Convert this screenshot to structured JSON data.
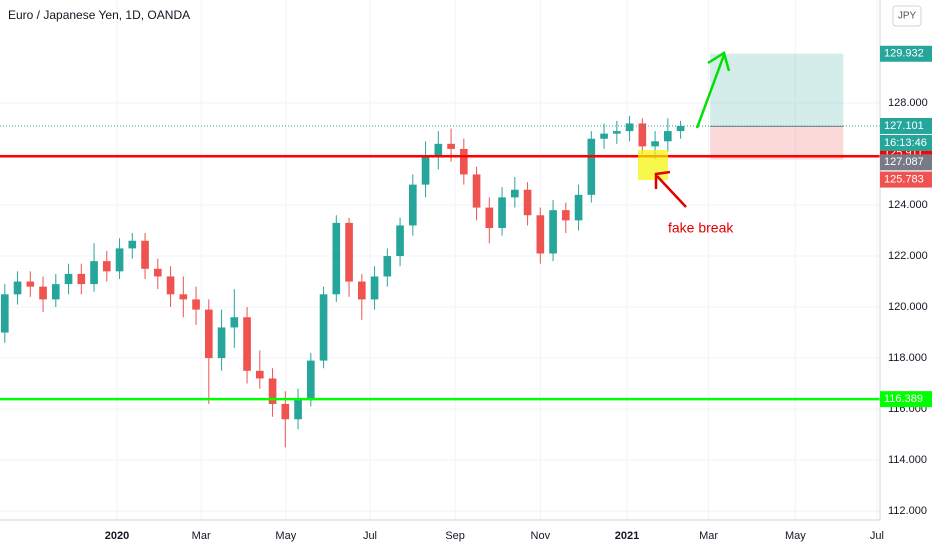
{
  "chart_data": {
    "type": "candlestick",
    "title": "Euro / Japanese Yen, 1D, OANDA",
    "currency": "JPY",
    "x": [
      2019.78,
      2019.805,
      2019.83,
      2019.855,
      2019.88,
      2019.905,
      2019.93,
      2019.955,
      2019.98,
      2020.005,
      2020.03,
      2020.055,
      2020.08,
      2020.105,
      2020.13,
      2020.155,
      2020.18,
      2020.205,
      2020.23,
      2020.255,
      2020.28,
      2020.305,
      2020.33,
      2020.355,
      2020.38,
      2020.405,
      2020.43,
      2020.455,
      2020.48,
      2020.505,
      2020.53,
      2020.555,
      2020.58,
      2020.605,
      2020.63,
      2020.655,
      2020.68,
      2020.705,
      2020.73,
      2020.755,
      2020.78,
      2020.805,
      2020.83,
      2020.855,
      2020.88,
      2020.905,
      2020.93,
      2020.955,
      2020.98,
      2021.005,
      2021.03,
      2021.055,
      2021.08,
      2021.105
    ],
    "open": [
      119.0,
      120.5,
      121.0,
      120.8,
      120.3,
      120.9,
      121.3,
      120.9,
      121.8,
      121.4,
      122.3,
      122.6,
      121.5,
      121.2,
      120.5,
      120.3,
      119.9,
      118.0,
      119.2,
      119.6,
      117.5,
      117.2,
      116.2,
      115.6,
      116.4,
      117.9,
      120.5,
      123.3,
      121.0,
      120.3,
      121.2,
      122.0,
      123.2,
      124.8,
      125.9,
      126.4,
      126.2,
      125.2,
      123.9,
      123.1,
      124.3,
      124.6,
      123.6,
      122.1,
      123.8,
      123.4,
      124.4,
      126.6,
      126.8,
      126.9,
      127.2,
      126.3,
      126.5,
      126.9
    ],
    "high": [
      120.9,
      121.4,
      121.4,
      121.2,
      121.3,
      121.7,
      121.7,
      122.5,
      122.2,
      122.7,
      122.9,
      122.9,
      121.9,
      121.6,
      121.2,
      120.8,
      120.3,
      119.9,
      120.7,
      120.0,
      118.3,
      117.6,
      116.7,
      116.8,
      118.2,
      120.8,
      123.6,
      123.5,
      121.3,
      121.6,
      122.3,
      123.5,
      125.2,
      126.5,
      126.9,
      127.0,
      126.6,
      125.5,
      124.3,
      124.7,
      125.1,
      124.9,
      123.9,
      124.2,
      124.1,
      124.8,
      126.9,
      127.2,
      127.3,
      127.5,
      127.4,
      126.9,
      127.4,
      127.3
    ],
    "low": [
      118.6,
      120.1,
      120.4,
      119.8,
      120.0,
      120.5,
      120.5,
      120.6,
      121.0,
      121.1,
      121.9,
      121.1,
      120.7,
      120.0,
      119.6,
      119.3,
      116.2,
      117.5,
      118.4,
      117.0,
      116.8,
      115.7,
      114.5,
      115.2,
      116.1,
      117.6,
      120.2,
      120.4,
      119.5,
      119.9,
      120.8,
      121.6,
      122.8,
      124.3,
      125.4,
      125.7,
      124.8,
      123.4,
      122.5,
      122.8,
      123.9,
      123.2,
      121.7,
      121.8,
      122.9,
      123.0,
      124.1,
      126.2,
      126.4,
      126.5,
      126.0,
      125.8,
      126.1,
      126.6
    ],
    "close": [
      120.5,
      121.0,
      120.8,
      120.3,
      120.9,
      121.3,
      120.9,
      121.8,
      121.4,
      122.3,
      122.6,
      121.5,
      121.2,
      120.5,
      120.3,
      119.9,
      118.0,
      119.2,
      119.6,
      117.5,
      117.2,
      116.2,
      115.6,
      116.4,
      117.9,
      120.5,
      123.3,
      121.0,
      120.3,
      121.2,
      122.0,
      123.2,
      124.8,
      125.9,
      126.4,
      126.2,
      125.2,
      123.9,
      123.1,
      124.3,
      124.6,
      123.6,
      122.1,
      123.8,
      123.4,
      124.4,
      126.6,
      126.8,
      126.9,
      127.2,
      126.3,
      126.5,
      126.9,
      127.1
    ],
    "up_color": "#26a69a",
    "down_color": "#ef5350",
    "xlim": [
      2019.7706,
      2021.496
    ],
    "xticks": [
      2020,
      {
        "value": 2020.165,
        "label": "Mar"
      },
      {
        "value": 2020.331,
        "label": "May"
      },
      {
        "value": 2020.496,
        "label": "Jul"
      },
      {
        "value": 2020.663,
        "label": "Sep"
      },
      {
        "value": 2020.83,
        "label": "Nov"
      },
      2021,
      {
        "value": 2021.16,
        "label": "Mar"
      },
      {
        "value": 2021.33,
        "label": "May"
      },
      {
        "value": 2021.49,
        "label": "Jul"
      }
    ],
    "ylim": [
      111.65,
      132.04
    ],
    "yticks": [
      {
        "value": 112,
        "label": "112.000"
      },
      {
        "value": 114,
        "label": "114.000"
      },
      {
        "value": 116,
        "label": "116.000"
      },
      {
        "value": 118,
        "label": "118.000"
      },
      {
        "value": 120,
        "label": "120.000"
      },
      {
        "value": 122,
        "label": "122.000"
      },
      {
        "value": 124,
        "label": "124.000"
      },
      {
        "value": 126,
        "label": "126.000"
      },
      {
        "value": 128,
        "label": "128.000"
      }
    ],
    "grid": true,
    "hlines": [
      {
        "value": 125.911,
        "color": "#ff0000"
      },
      {
        "value": 116.389,
        "color": "#00ff00"
      }
    ],
    "last_price": 127.101,
    "countdown": "16:13:46",
    "position": {
      "x_range": [
        2021.163,
        2021.424
      ],
      "target": 129.932,
      "entry": 127.087,
      "stop": 125.783
    },
    "annotation": "fake break"
  }
}
